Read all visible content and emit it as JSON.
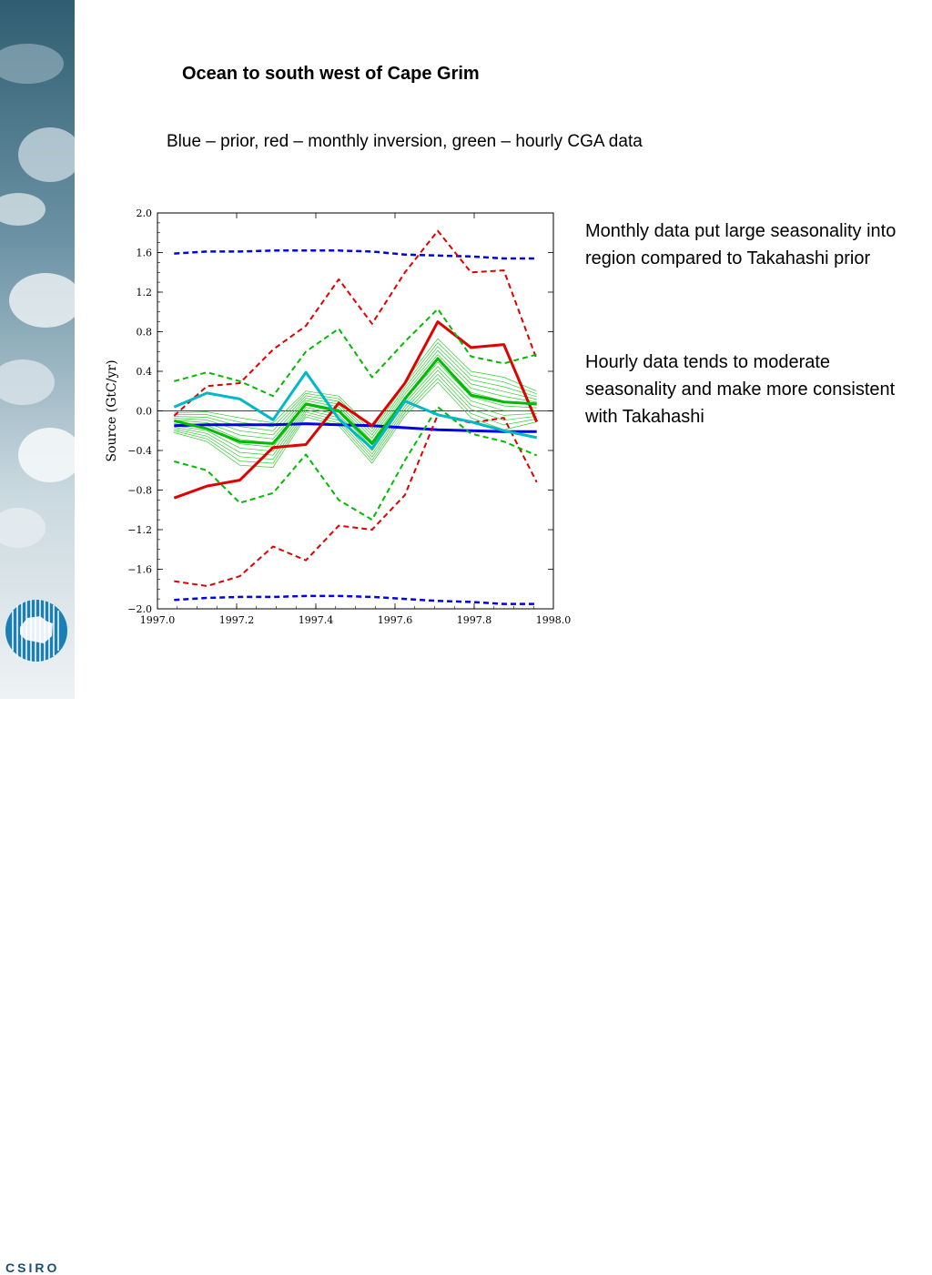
{
  "slide": {
    "title": "Ocean to south west of Cape Grim",
    "subtitle": "Blue – prior, red – monthly inversion, green – hourly CGA data",
    "notes": [
      "Monthly data put large seasonality into region compared to Takahashi prior",
      "Hourly data tends to moderate seasonality and make more consistent with Takahashi"
    ],
    "logo_text": "CSIRO"
  },
  "colors": {
    "prior": "#0000ee",
    "monthly": "#e00000",
    "hourly": "#00bb00",
    "hourly_thin": "#33cc33",
    "cyan": "#00b8c8",
    "brand": "#1a5f8a"
  },
  "chart_data": {
    "type": "line",
    "ylabel": "Source (GtC/yr)",
    "xlabel": "",
    "xlim": [
      1997.0,
      1998.0
    ],
    "ylim": [
      -2.0,
      2.0
    ],
    "x_ticks": [
      "1997.0",
      "1997.2",
      "1997.4",
      "1997.6",
      "1997.8",
      "1998.0"
    ],
    "y_ticks": [
      "2.0",
      "1.6",
      "1.2",
      "0.8",
      "0.4",
      "0.0",
      "−0.4",
      "−0.8",
      "−1.2",
      "−1.6",
      "−2.0"
    ],
    "x": [
      1997.042,
      1997.125,
      1997.208,
      1997.292,
      1997.375,
      1997.458,
      1997.542,
      1997.625,
      1997.708,
      1997.792,
      1997.875,
      1997.958
    ],
    "series": [
      {
        "key": "prior",
        "style": "solid",
        "color_key": "prior",
        "width": 3,
        "values": [
          -0.15,
          -0.14,
          -0.14,
          -0.14,
          -0.13,
          -0.14,
          -0.15,
          -0.17,
          -0.19,
          -0.2,
          -0.21,
          -0.21
        ]
      },
      {
        "key": "prior_upper",
        "style": "dashed",
        "color_key": "prior",
        "width": 2.5,
        "values": [
          1.59,
          1.61,
          1.61,
          1.62,
          1.62,
          1.62,
          1.61,
          1.58,
          1.57,
          1.56,
          1.54,
          1.54
        ]
      },
      {
        "key": "prior_lower",
        "style": "dashed",
        "color_key": "prior",
        "width": 2.5,
        "values": [
          -1.91,
          -1.89,
          -1.88,
          -1.88,
          -1.87,
          -1.87,
          -1.88,
          -1.9,
          -1.92,
          -1.93,
          -1.95,
          -1.95
        ]
      },
      {
        "key": "monthly",
        "style": "solid",
        "color_key": "monthly",
        "width": 3,
        "values": [
          -0.88,
          -0.76,
          -0.7,
          -0.37,
          -0.34,
          0.08,
          -0.15,
          0.28,
          0.9,
          0.64,
          0.67,
          -0.11
        ]
      },
      {
        "key": "monthly_upper",
        "style": "dashed",
        "color_key": "monthly",
        "width": 2,
        "values": [
          -0.05,
          0.25,
          0.28,
          0.62,
          0.86,
          1.33,
          0.88,
          1.4,
          1.82,
          1.4,
          1.42,
          0.52
        ]
      },
      {
        "key": "monthly_lower",
        "style": "dashed",
        "color_key": "monthly",
        "width": 2,
        "values": [
          -1.72,
          -1.77,
          -1.67,
          -1.37,
          -1.51,
          -1.16,
          -1.2,
          -0.85,
          -0.04,
          -0.12,
          -0.07,
          -0.72
        ]
      },
      {
        "key": "hourly",
        "style": "solid",
        "color_key": "hourly",
        "width": 3,
        "values": [
          -0.1,
          -0.18,
          -0.31,
          -0.33,
          0.07,
          0.0,
          -0.33,
          0.12,
          0.53,
          0.16,
          0.09,
          0.07
        ]
      },
      {
        "key": "hourly_upper",
        "style": "dashed",
        "color_key": "hourly",
        "width": 2,
        "values": [
          0.3,
          0.39,
          0.3,
          0.15,
          0.6,
          0.83,
          0.34,
          0.7,
          1.03,
          0.55,
          0.48,
          0.57
        ]
      },
      {
        "key": "hourly_lower",
        "style": "dashed",
        "color_key": "hourly",
        "width": 2,
        "values": [
          -0.51,
          -0.6,
          -0.93,
          -0.83,
          -0.44,
          -0.9,
          -1.1,
          -0.5,
          0.04,
          -0.23,
          -0.31,
          -0.45
        ]
      },
      {
        "key": "cyan",
        "style": "solid",
        "color_key": "cyan",
        "width": 3,
        "values": [
          0.04,
          0.18,
          0.12,
          -0.09,
          0.39,
          -0.08,
          -0.38,
          0.1,
          -0.04,
          -0.11,
          -0.2,
          -0.27
        ]
      }
    ],
    "hourly_spread": {
      "upper": [
        -0.02,
        -0.01,
        -0.07,
        -0.12,
        0.2,
        0.15,
        -0.18,
        0.3,
        0.73,
        0.4,
        0.34,
        0.2
      ],
      "lower": [
        -0.22,
        -0.31,
        -0.55,
        -0.57,
        -0.06,
        -0.15,
        -0.53,
        -0.05,
        0.29,
        -0.07,
        -0.19,
        -0.11
      ],
      "members": 12
    }
  }
}
